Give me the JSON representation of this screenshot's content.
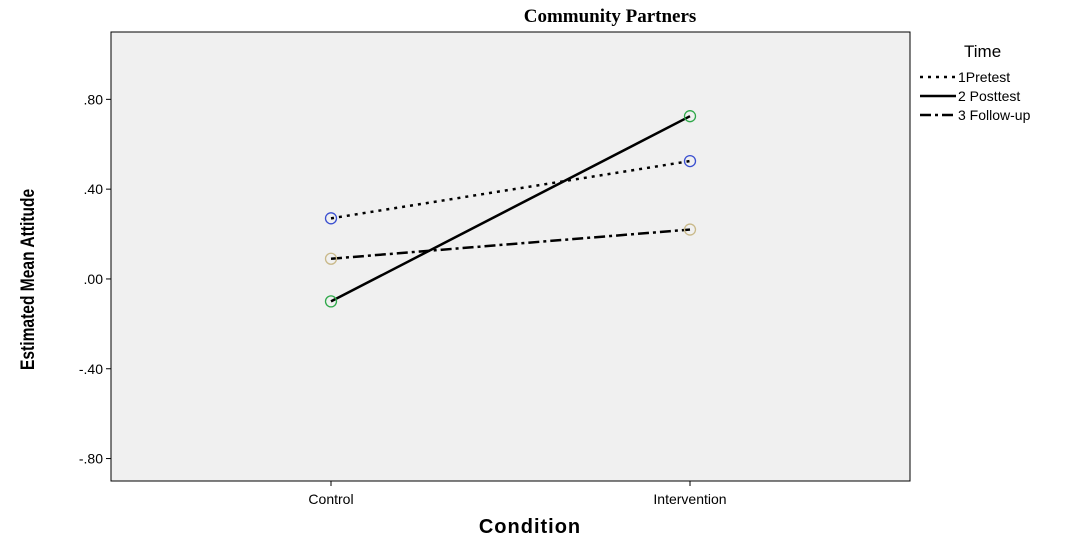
{
  "chart_data": {
    "type": "line",
    "title": "Community Partners",
    "xlabel": "Condition",
    "ylabel": "Estimated Mean Attitude",
    "categories": [
      "Control",
      "Intervention"
    ],
    "y_ticks": [
      ".80",
      ".40",
      ".00",
      "-.40",
      "-.80"
    ],
    "ylim": [
      -0.9,
      1.1
    ],
    "legend_title": "Time",
    "legend_position": "top-right",
    "grid": false,
    "series": [
      {
        "name": "1Pretest",
        "values": [
          0.27,
          0.525
        ],
        "line_style": "dotted",
        "marker_color": "#3a4fd0"
      },
      {
        "name": "2 Posttest",
        "values": [
          -0.1,
          0.725
        ],
        "line_style": "solid",
        "marker_color": "#2fa84a"
      },
      {
        "name": "3 Follow-up",
        "values": [
          0.09,
          0.22
        ],
        "line_style": "dash-dot",
        "marker_color": "#c9b98a"
      }
    ],
    "colors": {
      "plot_background": "#f0f0f0",
      "line": "#000000"
    }
  }
}
